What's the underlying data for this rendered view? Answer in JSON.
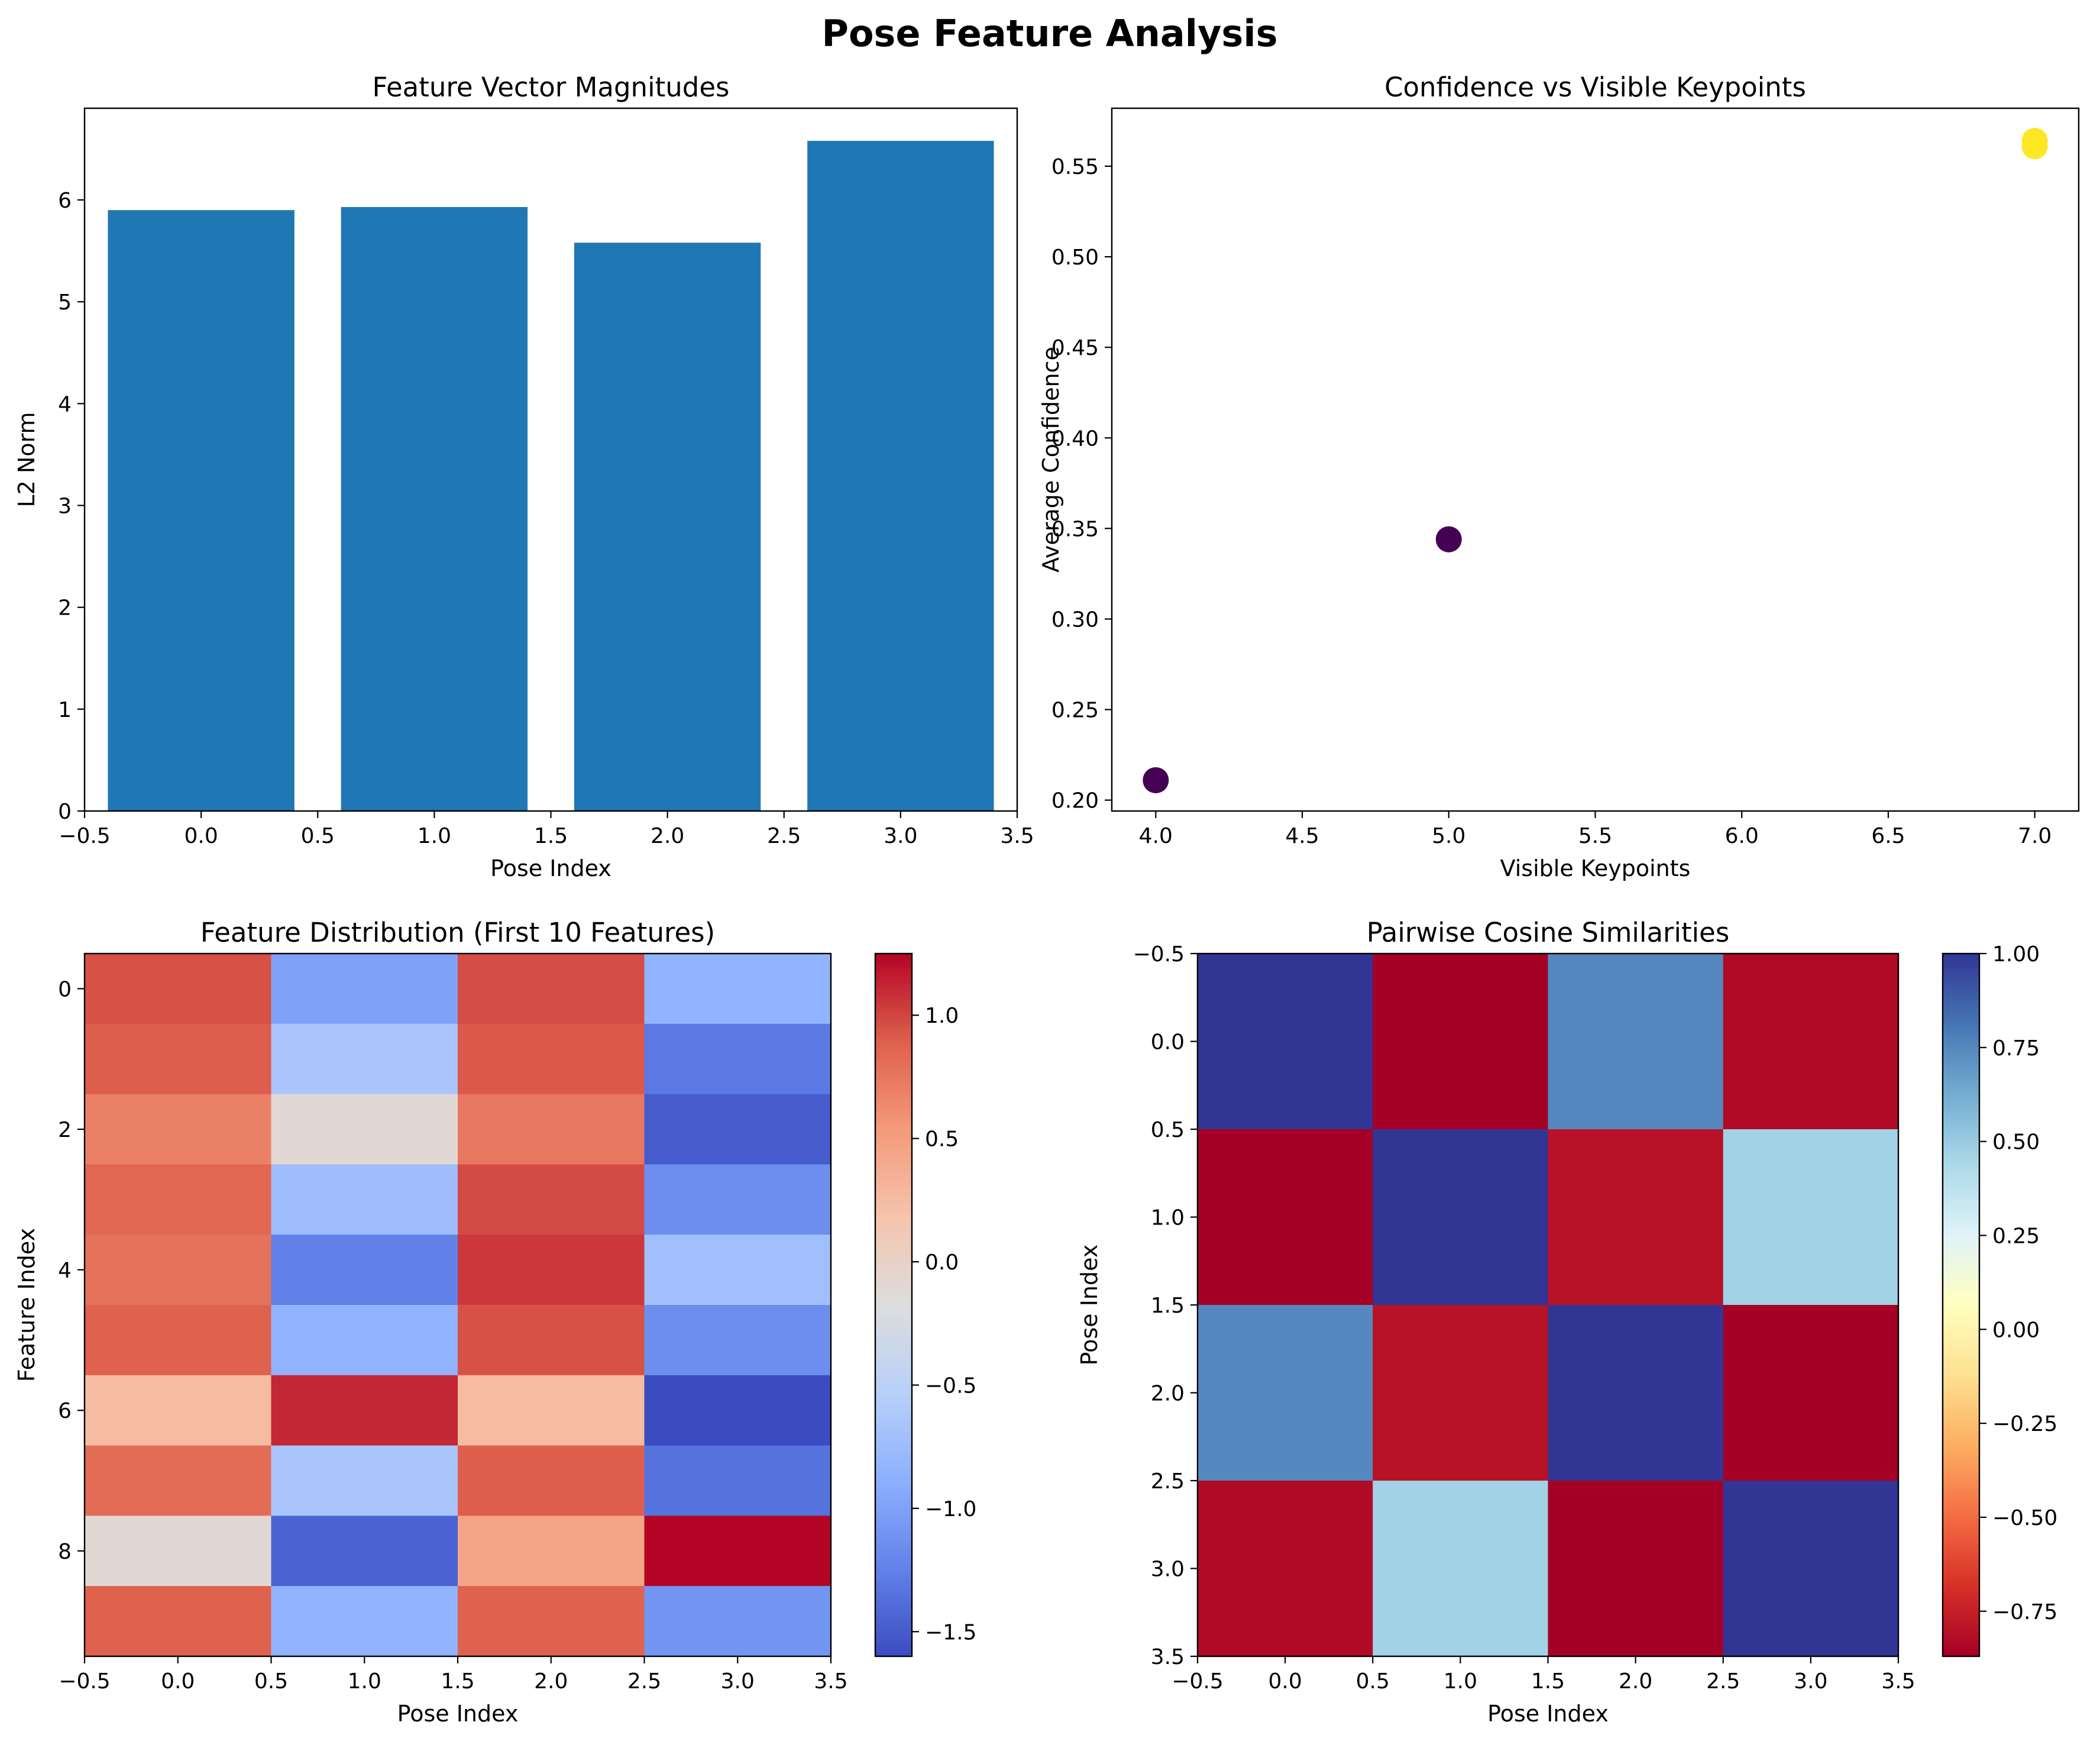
{
  "figure": {
    "title": "Pose Feature Analysis"
  },
  "colors": {
    "bar": "#1f77b4",
    "scatter_low": "#440154",
    "scatter_high": "#fde725"
  },
  "chart_data": [
    {
      "id": "magnitudes",
      "type": "bar",
      "title": "Feature Vector Magnitudes",
      "xlabel": "Pose Index",
      "ylabel": "L2 Norm",
      "x": [
        0,
        1,
        2,
        3
      ],
      "values": [
        5.9,
        5.93,
        5.58,
        6.58
      ],
      "xlim": [
        -0.5,
        3.5
      ],
      "ylim": [
        0,
        6.9
      ],
      "xticks": [
        -0.5,
        0.0,
        0.5,
        1.0,
        1.5,
        2.0,
        2.5,
        3.0,
        3.5
      ],
      "yticks": [
        0,
        1,
        2,
        3,
        4,
        5,
        6
      ],
      "grid": false
    },
    {
      "id": "confidence",
      "type": "scatter",
      "title": "Confidence vs Visible Keypoints",
      "xlabel": "Visible Keypoints",
      "ylabel": "Average Confidence",
      "points": [
        {
          "x": 4,
          "y": 0.211,
          "color": "#440154"
        },
        {
          "x": 5,
          "y": 0.344,
          "color": "#440154"
        },
        {
          "x": 7,
          "y": 0.561,
          "color": "#fde725"
        },
        {
          "x": 7,
          "y": 0.564,
          "color": "#fde725"
        }
      ],
      "xlim": [
        3.85,
        7.15
      ],
      "ylim": [
        0.194,
        0.582
      ],
      "xticks": [
        4.0,
        4.5,
        5.0,
        5.5,
        6.0,
        6.5,
        7.0
      ],
      "yticks": [
        0.2,
        0.25,
        0.3,
        0.35,
        0.4,
        0.45,
        0.5,
        0.55
      ],
      "grid": false
    },
    {
      "id": "features",
      "type": "heatmap",
      "title": "Feature Distribution (First 10 Features)",
      "xlabel": "Pose Index",
      "ylabel": "Feature Index",
      "colormap": "coolwarm",
      "vmin": -1.6,
      "vmax": 1.25,
      "values": [
        [
          0.95,
          -1.0,
          0.97,
          -0.85
        ],
        [
          0.9,
          -0.65,
          0.92,
          -1.3
        ],
        [
          0.7,
          -0.1,
          0.75,
          -1.5
        ],
        [
          0.85,
          -0.75,
          0.98,
          -1.15
        ],
        [
          0.78,
          -1.25,
          1.05,
          -0.72
        ],
        [
          0.88,
          -0.85,
          0.95,
          -1.15
        ],
        [
          0.25,
          1.12,
          0.25,
          -1.6
        ],
        [
          0.82,
          -0.65,
          0.9,
          -1.35
        ],
        [
          -0.1,
          -1.45,
          0.45,
          1.25
        ],
        [
          0.88,
          -0.85,
          0.88,
          -1.1
        ]
      ],
      "xticks": [
        -0.5,
        0.0,
        0.5,
        1.0,
        1.5,
        2.0,
        2.5,
        3.0,
        3.5
      ],
      "yticks": [
        0,
        2,
        4,
        6,
        8
      ],
      "colorbar_ticks": [
        -1.5,
        -1.0,
        -0.5,
        0.0,
        0.5,
        1.0
      ]
    },
    {
      "id": "similarity",
      "type": "heatmap",
      "title": "Pairwise Cosine Similarities",
      "xlabel": "Pose Index",
      "ylabel": "Pose Index",
      "colormap": "RdYlBu",
      "vmin": -0.87,
      "vmax": 1.0,
      "values": [
        [
          1.0,
          -0.87,
          0.75,
          -0.83
        ],
        [
          -0.87,
          1.0,
          -0.8,
          0.47
        ],
        [
          0.75,
          -0.8,
          1.0,
          -0.87
        ],
        [
          -0.83,
          0.47,
          -0.87,
          1.0
        ]
      ],
      "xticks": [
        -0.5,
        0.0,
        0.5,
        1.0,
        1.5,
        2.0,
        2.5,
        3.0,
        3.5
      ],
      "yticks": [
        -0.5,
        0.0,
        0.5,
        1.0,
        1.5,
        2.0,
        2.5,
        3.0,
        3.5
      ],
      "colorbar_ticks": [
        -0.75,
        -0.5,
        -0.25,
        0.0,
        0.25,
        0.5,
        0.75,
        1.0
      ]
    }
  ]
}
